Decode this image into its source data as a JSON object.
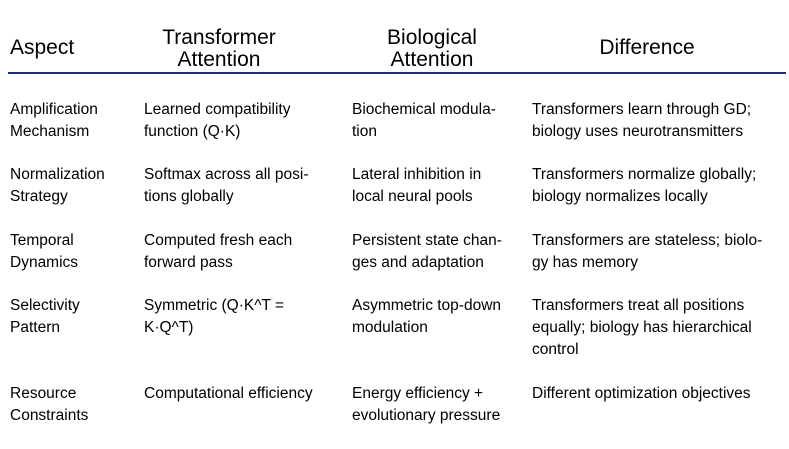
{
  "headers": {
    "aspect": [
      "Aspect"
    ],
    "transformer": [
      "Transformer",
      "Attention"
    ],
    "biological": [
      "Biological",
      "Attention"
    ],
    "difference": [
      "Difference"
    ]
  },
  "rows": [
    {
      "aspect": [
        "Amplification",
        "Mechanism"
      ],
      "transformer": [
        "Learned compatibility",
        "function (Q·K)"
      ],
      "biological": [
        "Biochemical modula-",
        "tion"
      ],
      "difference": [
        "Transformers learn through GD;",
        "biology uses neurotransmitters"
      ]
    },
    {
      "aspect": [
        "Normalization",
        "Strategy"
      ],
      "transformer": [
        "Softmax across all posi-",
        "tions globally"
      ],
      "biological": [
        "Lateral inhibition in",
        "local neural pools"
      ],
      "difference": [
        "Transformers normalize globally;",
        "biology normalizes locally"
      ]
    },
    {
      "aspect": [
        "Temporal",
        "Dynamics"
      ],
      "transformer": [
        "Computed fresh each",
        "forward pass"
      ],
      "biological": [
        "Persistent state chan-",
        "ges and adaptation"
      ],
      "difference": [
        "Transformers are stateless; biolo-",
        "gy has memory"
      ]
    },
    {
      "aspect": [
        "Selectivity",
        "Pattern"
      ],
      "transformer": [
        "Symmetric (Q·K^T =",
        "K·Q^T)"
      ],
      "biological": [
        "Asymmetric top-down",
        "modulation"
      ],
      "difference": [
        "Transformers treat all positions",
        "equally; biology has hierarchical",
        "control"
      ]
    },
    {
      "aspect": [
        "Resource",
        "Constraints"
      ],
      "transformer": [
        "Computational efficiency"
      ],
      "biological": [
        "Energy efficiency +",
        "evolutionary pressure"
      ],
      "difference": [
        "Different optimization objectives"
      ]
    }
  ]
}
